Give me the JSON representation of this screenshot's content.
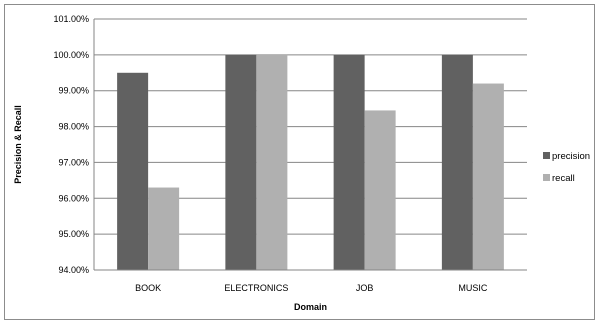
{
  "chart_data": {
    "type": "bar",
    "categories": [
      "BOOK",
      "ELECTRONICS",
      "JOB",
      "MUSIC"
    ],
    "series": [
      {
        "name": "precision",
        "values": [
          99.5,
          100.0,
          100.0,
          100.0
        ],
        "color": "#616161"
      },
      {
        "name": "recall",
        "values": [
          96.3,
          100.0,
          98.45,
          99.2
        ],
        "color": "#b0b0b0"
      }
    ],
    "xlabel": "Domain",
    "ylabel": "Precision & Recall",
    "ylim": [
      94.0,
      101.0
    ],
    "ytick_step": 1.0,
    "ytick_labels": [
      "94.00%",
      "95.00%",
      "96.00%",
      "97.00%",
      "98.00%",
      "99.00%",
      "100.00%",
      "101.00%"
    ],
    "grid": true,
    "legend_position": "right"
  }
}
